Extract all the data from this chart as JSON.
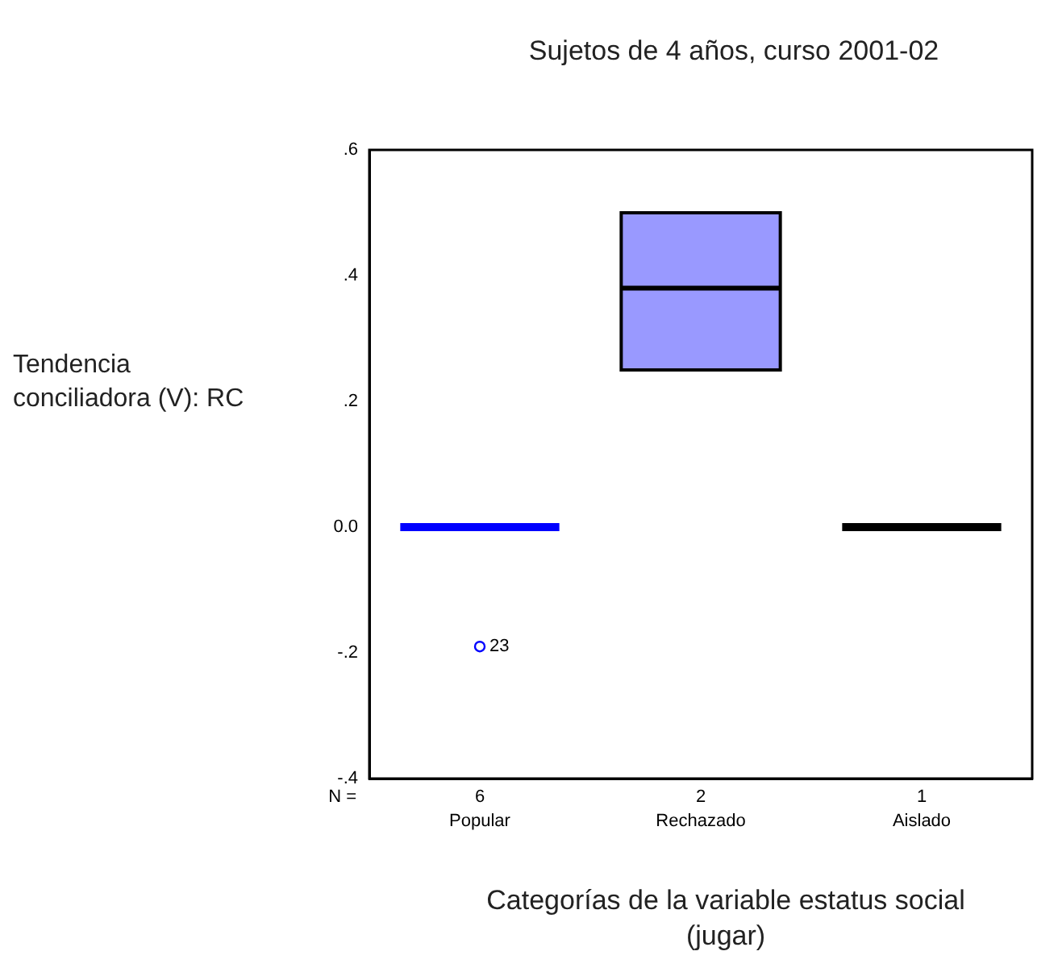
{
  "chart_data": {
    "type": "box",
    "title": "Sujetos  de 4 años, curso 2001-02",
    "xlabel": "Categorías de la variable estatus social (jugar)",
    "ylabel": "Tendencia conciliadora (V): RC",
    "categories": [
      "Popular",
      "Rechazado",
      "Aislado"
    ],
    "series": [
      {
        "colors": [
          "#0000ff",
          "#9999ff",
          "#000000"
        ],
        "boxes": [
          {
            "low": 0,
            "q1": 0,
            "median": 0,
            "q3": 0,
            "high": 0,
            "outliers": [
              -0.19
            ]
          },
          {
            "low": 0.25,
            "q1": 0.25,
            "median": 0.38,
            "q3": 0.5,
            "high": 0.5
          },
          {
            "low": 0,
            "q1": 0,
            "median": 0,
            "q3": 0,
            "high": 0
          }
        ]
      }
    ],
    "ylim": [
      -0.4,
      0.6
    ],
    "yticks": [
      {
        "value": -0.4,
        "label": "-.4"
      },
      {
        "value": -0.2,
        "label": "-.2"
      },
      {
        "value": 0,
        "label": "0.0"
      },
      {
        "value": 0.2,
        "label": ".2"
      },
      {
        "value": 0.4,
        "label": ".4"
      },
      {
        "value": 0.6,
        "label": ".6"
      }
    ],
    "grid": false,
    "legend": false,
    "annotations": [
      "N =",
      "6",
      "2",
      "1",
      "23"
    ]
  }
}
